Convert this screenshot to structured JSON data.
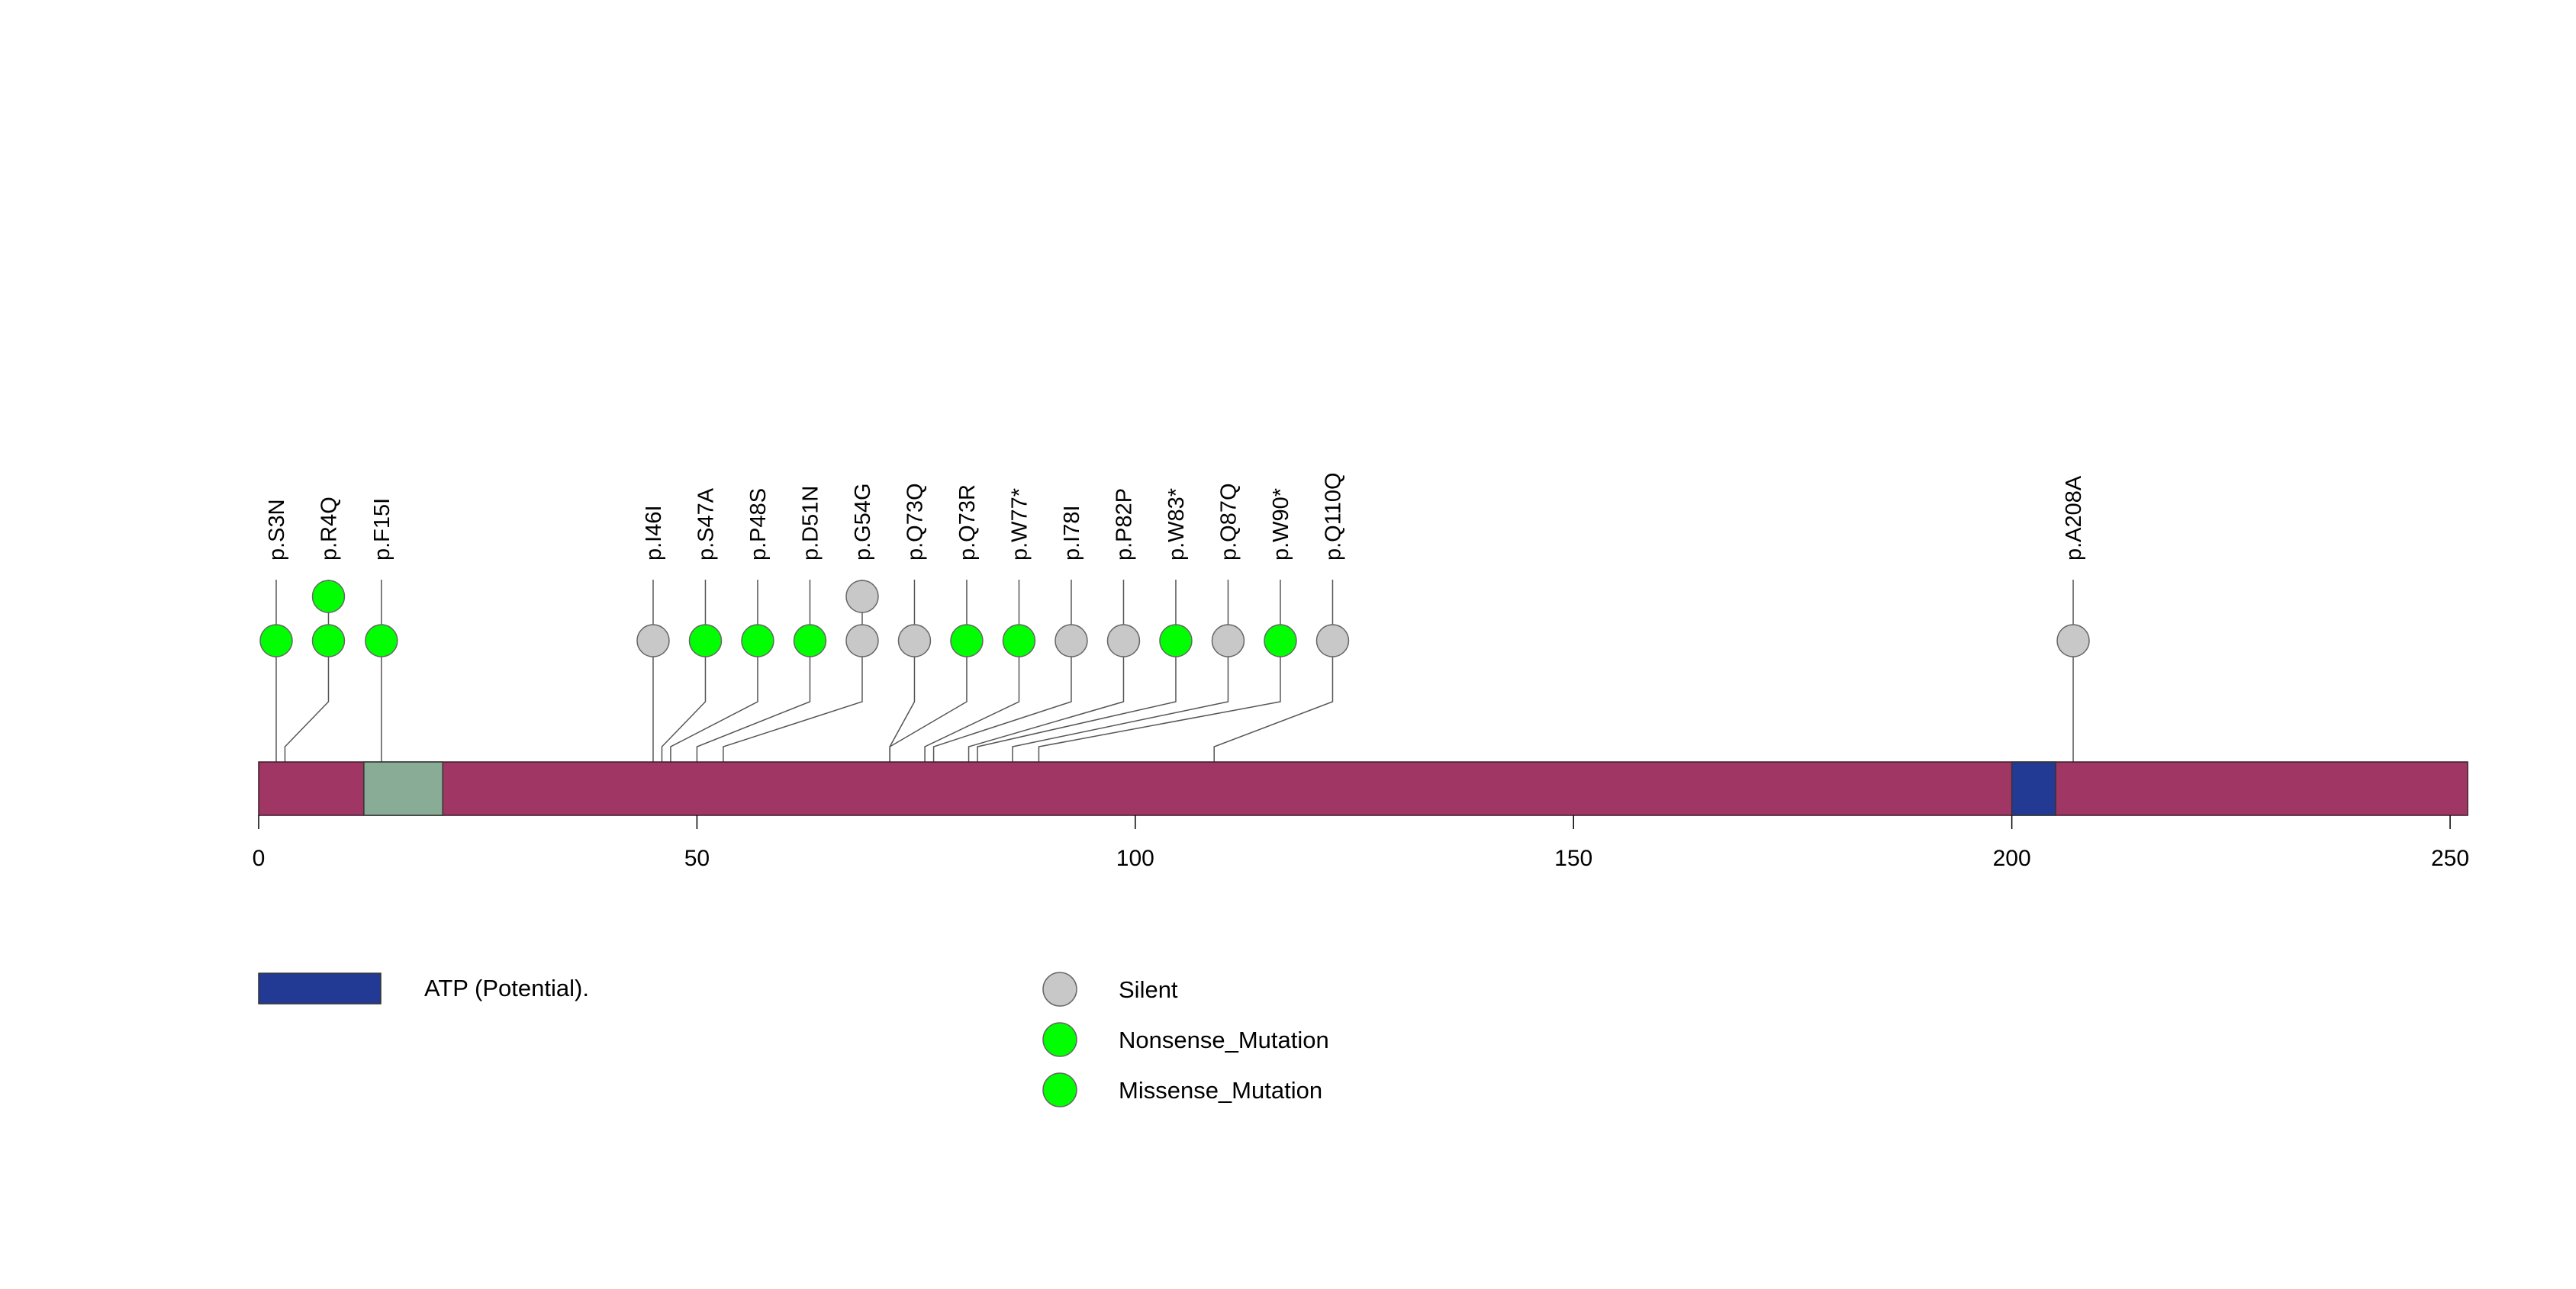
{
  "chart_data": {
    "type": "lollipop",
    "protein_length": 252,
    "x_axis": {
      "range": [
        0,
        252
      ],
      "ticks": [
        0,
        50,
        100,
        150,
        200,
        250
      ],
      "tick_labels": [
        "0",
        "50",
        "100",
        "150",
        "200",
        "250"
      ]
    },
    "domains": [
      {
        "name": "",
        "start": 12,
        "end": 21,
        "color": "#88ac96"
      },
      {
        "name": "ATP (Potential).",
        "start": 200,
        "end": 205,
        "color": "#223a94"
      }
    ],
    "mutations": [
      {
        "label": "p.S3N",
        "position": 2,
        "type": "Missense_Mutation",
        "count": 1
      },
      {
        "label": "p.R4Q",
        "position": 3,
        "type": "Missense_Mutation",
        "count": 2
      },
      {
        "label": "p.F15I",
        "position": 14,
        "type": "Missense_Mutation",
        "count": 1
      },
      {
        "label": "p.I46I",
        "position": 45,
        "type": "Silent",
        "count": 1
      },
      {
        "label": "p.S47A",
        "position": 46,
        "type": "Missense_Mutation",
        "count": 1
      },
      {
        "label": "p.P48S",
        "position": 47,
        "type": "Missense_Mutation",
        "count": 1
      },
      {
        "label": "p.D51N",
        "position": 50,
        "type": "Missense_Mutation",
        "count": 1
      },
      {
        "label": "p.G54G",
        "position": 53,
        "type": "Silent",
        "count": 2
      },
      {
        "label": "p.Q73Q",
        "position": 72,
        "type": "Silent",
        "count": 1
      },
      {
        "label": "p.Q73R",
        "position": 72,
        "type": "Missense_Mutation",
        "count": 1
      },
      {
        "label": "p.W77*",
        "position": 76,
        "type": "Nonsense_Mutation",
        "count": 1
      },
      {
        "label": "p.I78I",
        "position": 77,
        "type": "Silent",
        "count": 1
      },
      {
        "label": "p.P82P",
        "position": 81,
        "type": "Silent",
        "count": 1
      },
      {
        "label": "p.W83*",
        "position": 82,
        "type": "Nonsense_Mutation",
        "count": 1
      },
      {
        "label": "p.Q87Q",
        "position": 86,
        "type": "Silent",
        "count": 1
      },
      {
        "label": "p.W90*",
        "position": 89,
        "type": "Nonsense_Mutation",
        "count": 1
      },
      {
        "label": "p.Q110Q",
        "position": 109,
        "type": "Silent",
        "count": 1
      },
      {
        "label": "p.A208A",
        "position": 207,
        "type": "Silent",
        "count": 1
      }
    ],
    "legend": {
      "domains": [
        {
          "name": "ATP (Potential).",
          "color": "#223a94"
        }
      ],
      "mutation_types": [
        {
          "name": "Silent",
          "color": "#c8c8c8"
        },
        {
          "name": "Nonsense_Mutation",
          "color": "#00ff00"
        },
        {
          "name": "Missense_Mutation",
          "color": "#00ff00"
        }
      ]
    },
    "colors": {
      "backbone": "#a03663",
      "silent": "#c8c8c8",
      "nonsense": "#00ff00",
      "missense": "#00ff00"
    }
  }
}
